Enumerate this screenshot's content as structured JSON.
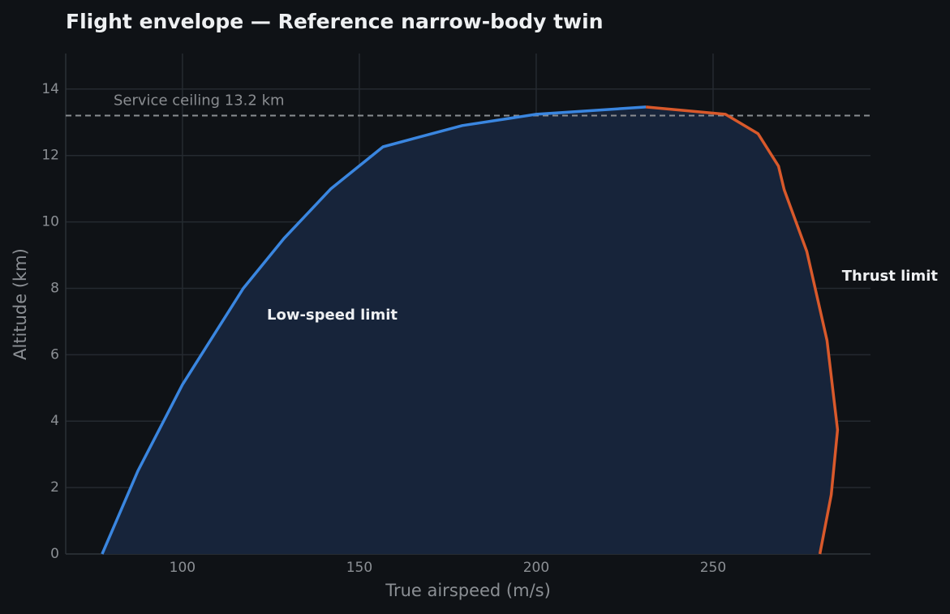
{
  "chart_data": {
    "type": "line",
    "title": "Flight envelope — Reference narrow-body twin",
    "x_label": "True airspeed (m/s)",
    "y_label": "Altitude (km)",
    "xlim": [
      67,
      294.5
    ],
    "ylim": [
      0,
      15.07
    ],
    "xticks": [
      100,
      150,
      200,
      250
    ],
    "yticks": [
      0,
      2,
      4,
      6,
      8,
      10,
      12,
      14
    ],
    "grid": true,
    "fill_color": "#17243a",
    "reference_line": {
      "value": 13.2,
      "label": "Service ceiling 13.2 km",
      "color": "#8a8d91"
    },
    "series": [
      {
        "name": "Low-speed limit",
        "color": "#3a86e0",
        "x": [
          77.3,
          87.4,
          100,
          117.2,
          128.7,
          142,
          156.7,
          179.1,
          200,
          231
        ],
        "values": [
          0,
          2.5,
          5.1,
          8.0,
          9.5,
          11.0,
          12.26,
          12.9,
          13.24,
          13.46
        ]
      },
      {
        "name": "Thrust limit",
        "color": "#d9592b",
        "x": [
          231,
          253.5,
          262.7,
          268.5,
          270.1,
          276.5,
          282.2,
          285.2,
          283.4,
          280.2
        ],
        "values": [
          13.46,
          13.24,
          12.66,
          11.68,
          10.97,
          9.11,
          6.43,
          3.74,
          1.78,
          0
        ]
      }
    ]
  }
}
